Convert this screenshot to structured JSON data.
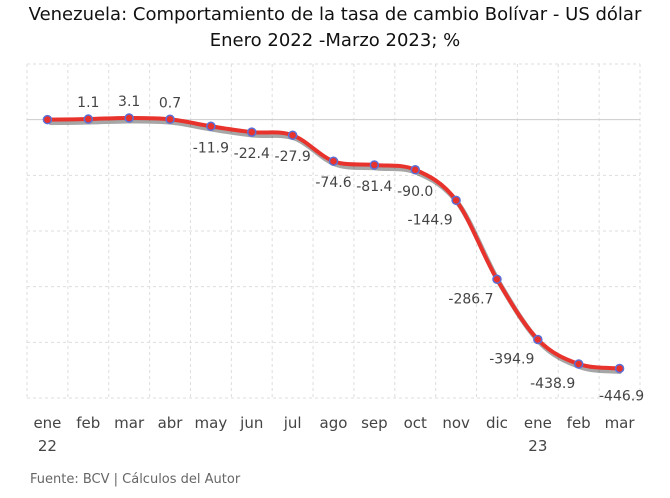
{
  "chart_data": {
    "type": "line",
    "title": "Venezuela: Comportamiento de la tasa de cambio Bolívar - US dólar",
    "subtitle": "Enero 2022 -Marzo 2023; %",
    "categories": [
      "ene",
      "feb",
      "mar",
      "abr",
      "may",
      "jun",
      "jul",
      "ago",
      "sep",
      "oct",
      "nov",
      "dic",
      "ene",
      "feb",
      "mar"
    ],
    "year_labels": {
      "0": "22",
      "12": "23"
    },
    "values": [
      0,
      1.1,
      3.1,
      0.7,
      -11.9,
      -22.4,
      -27.9,
      -74.6,
      -81.4,
      -90.0,
      -144.9,
      -286.7,
      -394.9,
      -438.9,
      -446.9
    ],
    "data_labels": [
      "",
      "1.1",
      "3.1",
      "0.7",
      "-11.9",
      "-22.4",
      "-27.9",
      "-74.6",
      "-81.4",
      "-90.0",
      "-144.9",
      "-286.7",
      "-394.9",
      "-438.9",
      "-446.9"
    ],
    "ylim": [
      -500,
      100
    ],
    "y_axis_visible": false,
    "grid": true,
    "colors": {
      "line": "#e8322c",
      "marker_border": "#5b6fd6",
      "grid": "#dddddd"
    }
  },
  "source": "Fuente: BCV | Cálculos del Autor"
}
